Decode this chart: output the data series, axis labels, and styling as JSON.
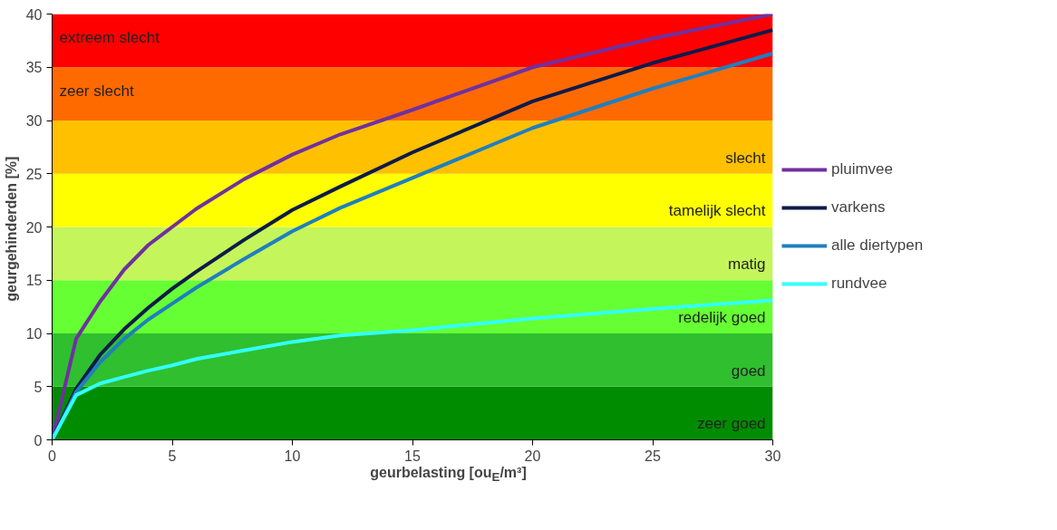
{
  "chart_data": {
    "type": "line",
    "xlabel": "geurbelasting  [ou$_{E}$/m³]",
    "ylabel": "geurgehinderden  [%]",
    "xlim": [
      0,
      30
    ],
    "ylim": [
      0,
      40
    ],
    "xticks": [
      0,
      5,
      10,
      15,
      20,
      25,
      30
    ],
    "yticks": [
      0,
      5,
      10,
      15,
      20,
      25,
      30,
      35,
      40
    ],
    "grid": false,
    "legend": "right",
    "line_style": "solid",
    "marker": "none",
    "x": [
      0,
      1,
      2,
      3,
      4,
      5,
      6,
      8,
      10,
      12,
      15,
      20,
      25,
      30
    ],
    "series": [
      {
        "name": "pluimvee",
        "color": "#7030a0",
        "values": [
          0,
          9.5,
          13,
          16,
          18.3,
          20,
          21.7,
          24.5,
          26.8,
          28.7,
          31,
          35,
          37.7,
          40
        ]
      },
      {
        "name": "varkens",
        "color": "#0d1b4a",
        "values": [
          0,
          4.8,
          8,
          10.4,
          12.4,
          14.2,
          15.8,
          18.8,
          21.6,
          23.8,
          27,
          31.8,
          35.4,
          38.5
        ]
      },
      {
        "name": "alle diertypen",
        "color": "#1f7fbf",
        "values": [
          0,
          4.5,
          7.3,
          9.5,
          11.3,
          12.8,
          14.3,
          17,
          19.6,
          21.8,
          24.6,
          29.3,
          33,
          36.3
        ]
      },
      {
        "name": "rundvee",
        "color": "#33ffff",
        "values": [
          0,
          4.2,
          5.3,
          5.9,
          6.5,
          7,
          7.6,
          8.4,
          9.2,
          9.8,
          10.3,
          11.4,
          12.3,
          13.1
        ]
      }
    ],
    "bands": [
      {
        "axis": "y",
        "from": 0,
        "to": 5,
        "label": "zeer goed",
        "color": "#008c00"
      },
      {
        "axis": "y",
        "from": 5,
        "to": 10,
        "label": "goed",
        "color": "#2fbf2f"
      },
      {
        "axis": "y",
        "from": 10,
        "to": 15,
        "label": "redelijk goed",
        "color": "#66ff33"
      },
      {
        "axis": "y",
        "from": 15,
        "to": 20,
        "label": "matig",
        "color": "#c4f55a"
      },
      {
        "axis": "y",
        "from": 20,
        "to": 25,
        "label": "tamelijk slecht",
        "color": "#ffff00"
      },
      {
        "axis": "y",
        "from": 25,
        "to": 30,
        "label": "slecht",
        "color": "#ffc000"
      },
      {
        "axis": "y",
        "from": 30,
        "to": 35,
        "label": "zeer slecht",
        "color": "#ff6a00"
      },
      {
        "axis": "y",
        "from": 35,
        "to": 40,
        "label": "extreem slecht",
        "color": "#ff0000"
      }
    ]
  }
}
